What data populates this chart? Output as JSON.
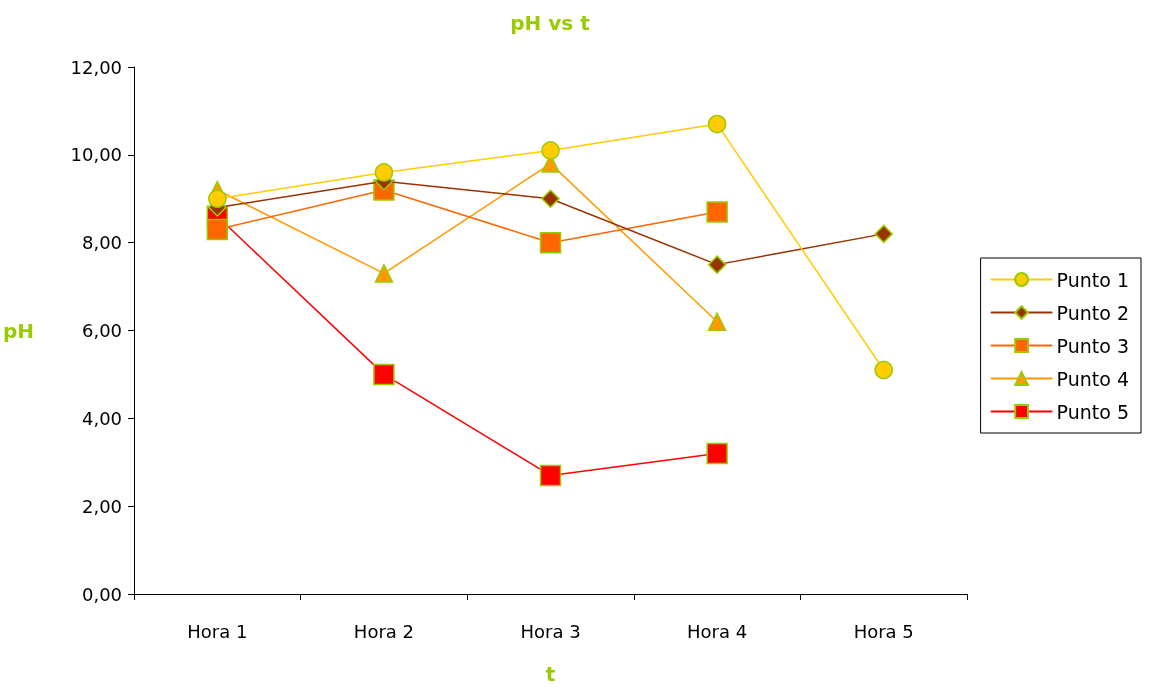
{
  "chart_data": {
    "type": "line",
    "title": "pH vs t",
    "xlabel": "t",
    "ylabel": "pH",
    "categories": [
      "Hora 1",
      "Hora 2",
      "Hora 3",
      "Hora 4",
      "Hora 5"
    ],
    "series": [
      {
        "name": "Punto 1",
        "color": "#ffcc00",
        "marker": "circle",
        "values": [
          9.0,
          9.6,
          10.1,
          10.7,
          5.1
        ]
      },
      {
        "name": "Punto 2",
        "color": "#993300",
        "marker": "diamond",
        "values": [
          8.8,
          9.4,
          9.0,
          7.5,
          8.2
        ]
      },
      {
        "name": "Punto 3",
        "color": "#ff6600",
        "marker": "square",
        "values": [
          8.3,
          9.2,
          8.0,
          8.7,
          null
        ]
      },
      {
        "name": "Punto 4",
        "color": "#ff9900",
        "marker": "triangle",
        "values": [
          9.2,
          7.3,
          9.8,
          6.2,
          null
        ]
      },
      {
        "name": "Punto 5",
        "color": "#ff0000",
        "marker": "square",
        "values": [
          8.6,
          5.0,
          2.7,
          3.2,
          null
        ]
      }
    ],
    "ylim": [
      0,
      12
    ],
    "yticks": [
      {
        "value": 0,
        "label": "0,00"
      },
      {
        "value": 2,
        "label": "2,00"
      },
      {
        "value": 4,
        "label": "4,00"
      },
      {
        "value": 6,
        "label": "6,00"
      },
      {
        "value": 8,
        "label": "8,00"
      },
      {
        "value": 10,
        "label": "10,00"
      },
      {
        "value": 12,
        "label": "12,00"
      }
    ],
    "grid": false,
    "legend": "right",
    "line_style": "solid"
  }
}
